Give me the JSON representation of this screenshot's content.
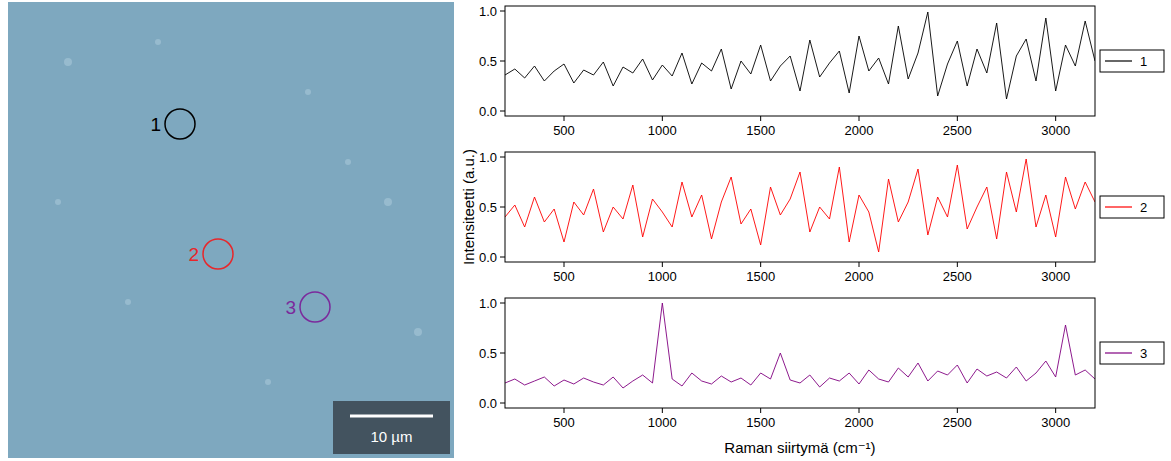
{
  "micrograph": {
    "scale_bar": "10 µm",
    "markers": [
      {
        "label": "1",
        "color": "#000000"
      },
      {
        "label": "2",
        "color": "#e8262a"
      },
      {
        "label": "3",
        "color": "#7b2a9c"
      }
    ]
  },
  "axis_labels": {
    "x": "Raman siirtymä (cm⁻¹)",
    "y": "Intensiteetti (a.u.)"
  },
  "chart_data": [
    {
      "type": "line",
      "legend": "right",
      "x": [
        200,
        250,
        300,
        350,
        400,
        450,
        500,
        550,
        600,
        650,
        700,
        750,
        800,
        850,
        900,
        950,
        1000,
        1050,
        1100,
        1150,
        1200,
        1250,
        1300,
        1350,
        1400,
        1450,
        1500,
        1550,
        1600,
        1650,
        1700,
        1750,
        1800,
        1850,
        1900,
        1950,
        2000,
        2050,
        2100,
        2150,
        2200,
        2250,
        2300,
        2350,
        2400,
        2450,
        2500,
        2550,
        2600,
        2650,
        2700,
        2750,
        2800,
        2850,
        2900,
        2950,
        3000,
        3050,
        3100,
        3150,
        3200
      ],
      "xlim": [
        200,
        3200
      ],
      "xticks": [
        500,
        1000,
        1500,
        2000,
        2500,
        3000
      ],
      "ylim": [
        -0.05,
        1.05
      ],
      "yticks": [
        {
          "value": 0,
          "label": "0.0"
        },
        {
          "value": 0.5,
          "label": "0.5"
        },
        {
          "value": 1,
          "label": "1.0"
        }
      ],
      "series": [
        {
          "name": "1",
          "color": "#000000",
          "values": [
            0.36,
            0.42,
            0.33,
            0.45,
            0.3,
            0.4,
            0.47,
            0.28,
            0.41,
            0.36,
            0.49,
            0.25,
            0.44,
            0.38,
            0.52,
            0.31,
            0.46,
            0.35,
            0.58,
            0.27,
            0.48,
            0.4,
            0.62,
            0.22,
            0.5,
            0.37,
            0.66,
            0.3,
            0.45,
            0.55,
            0.2,
            0.71,
            0.34,
            0.48,
            0.6,
            0.18,
            0.75,
            0.4,
            0.53,
            0.27,
            0.85,
            0.32,
            0.58,
            0.99,
            0.15,
            0.47,
            0.7,
            0.25,
            0.62,
            0.38,
            0.88,
            0.12,
            0.55,
            0.72,
            0.3,
            0.93,
            0.2,
            0.66,
            0.45,
            0.9,
            0.5
          ]
        }
      ]
    },
    {
      "type": "line",
      "legend": "right",
      "x": [
        200,
        250,
        300,
        350,
        400,
        450,
        500,
        550,
        600,
        650,
        700,
        750,
        800,
        850,
        900,
        950,
        1000,
        1050,
        1100,
        1150,
        1200,
        1250,
        1300,
        1350,
        1400,
        1450,
        1500,
        1550,
        1600,
        1650,
        1700,
        1750,
        1800,
        1850,
        1900,
        1950,
        2000,
        2050,
        2100,
        2150,
        2200,
        2250,
        2300,
        2350,
        2400,
        2450,
        2500,
        2550,
        2600,
        2650,
        2700,
        2750,
        2800,
        2850,
        2900,
        2950,
        3000,
        3050,
        3100,
        3150,
        3200
      ],
      "xlim": [
        200,
        3200
      ],
      "xticks": [
        500,
        1000,
        1500,
        2000,
        2500,
        3000
      ],
      "ylim": [
        -0.05,
        1.05
      ],
      "yticks": [
        {
          "value": 0,
          "label": "0.0"
        },
        {
          "value": 0.5,
          "label": "0.5"
        },
        {
          "value": 1,
          "label": "1.0"
        }
      ],
      "series": [
        {
          "name": "2",
          "color": "#ff0000",
          "values": [
            0.4,
            0.52,
            0.3,
            0.6,
            0.35,
            0.48,
            0.15,
            0.55,
            0.42,
            0.68,
            0.25,
            0.5,
            0.38,
            0.72,
            0.2,
            0.58,
            0.45,
            0.3,
            0.75,
            0.4,
            0.62,
            0.18,
            0.55,
            0.8,
            0.33,
            0.48,
            0.12,
            0.7,
            0.42,
            0.58,
            0.85,
            0.25,
            0.5,
            0.38,
            0.9,
            0.15,
            0.62,
            0.45,
            0.05,
            0.78,
            0.35,
            0.55,
            0.88,
            0.22,
            0.6,
            0.4,
            0.92,
            0.28,
            0.5,
            0.7,
            0.18,
            0.85,
            0.45,
            0.98,
            0.3,
            0.62,
            0.2,
            0.8,
            0.48,
            0.75,
            0.55
          ]
        }
      ]
    },
    {
      "type": "line",
      "legend": "right",
      "x": [
        200,
        250,
        300,
        350,
        400,
        450,
        500,
        550,
        600,
        650,
        700,
        750,
        800,
        850,
        900,
        950,
        1000,
        1050,
        1100,
        1150,
        1200,
        1250,
        1300,
        1350,
        1400,
        1450,
        1500,
        1550,
        1600,
        1650,
        1700,
        1750,
        1800,
        1850,
        1900,
        1950,
        2000,
        2050,
        2100,
        2150,
        2200,
        2250,
        2300,
        2350,
        2400,
        2450,
        2500,
        2550,
        2600,
        2650,
        2700,
        2750,
        2800,
        2850,
        2900,
        2950,
        3000,
        3050,
        3100,
        3150,
        3200
      ],
      "xlim": [
        200,
        3200
      ],
      "xticks": [
        500,
        1000,
        1500,
        2000,
        2500,
        3000
      ],
      "ylim": [
        -0.05,
        1.05
      ],
      "yticks": [
        {
          "value": 0,
          "label": "0.0"
        },
        {
          "value": 0.5,
          "label": "0.5"
        },
        {
          "value": 1,
          "label": "1.0"
        }
      ],
      "series": [
        {
          "name": "3",
          "color": "#800080",
          "values": [
            0.2,
            0.24,
            0.18,
            0.22,
            0.26,
            0.17,
            0.23,
            0.19,
            0.25,
            0.21,
            0.18,
            0.26,
            0.15,
            0.22,
            0.28,
            0.2,
            1.0,
            0.24,
            0.17,
            0.3,
            0.22,
            0.19,
            0.27,
            0.21,
            0.25,
            0.18,
            0.3,
            0.24,
            0.5,
            0.23,
            0.2,
            0.28,
            0.16,
            0.25,
            0.22,
            0.3,
            0.19,
            0.33,
            0.24,
            0.21,
            0.35,
            0.26,
            0.4,
            0.22,
            0.32,
            0.28,
            0.38,
            0.2,
            0.34,
            0.27,
            0.31,
            0.25,
            0.36,
            0.22,
            0.3,
            0.42,
            0.26,
            0.78,
            0.28,
            0.33,
            0.24
          ]
        }
      ]
    }
  ]
}
